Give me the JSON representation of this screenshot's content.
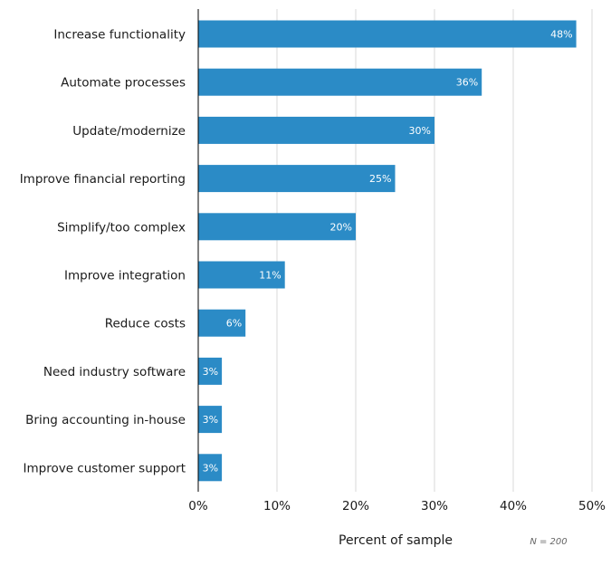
{
  "chart_data": {
    "type": "bar",
    "orientation": "horizontal",
    "categories": [
      "Increase functionality",
      "Automate processes",
      "Update/modernize",
      "Improve financial reporting",
      "Simplify/too complex",
      "Improve integration",
      "Reduce costs",
      "Need industry software",
      "Bring accounting in-house",
      "Improve customer support"
    ],
    "values": [
      48,
      36,
      30,
      25,
      20,
      11,
      6,
      3,
      3,
      3
    ],
    "data_labels": [
      "48%",
      "36%",
      "30%",
      "25%",
      "20%",
      "11%",
      "6%",
      "3%",
      "3%",
      "3%"
    ],
    "xlabel": "Percent of sample",
    "ylabel": "",
    "xlim": [
      0,
      50
    ],
    "ticks": [
      0,
      10,
      20,
      30,
      40,
      50
    ],
    "tick_labels": [
      "0%",
      "10%",
      "20%",
      "30%",
      "40%",
      "50%"
    ],
    "grid": true,
    "note": "N = 200",
    "bar_color": "#2b8bc6",
    "grid_color": "#d9d9d9",
    "axis_color": "#000000"
  }
}
